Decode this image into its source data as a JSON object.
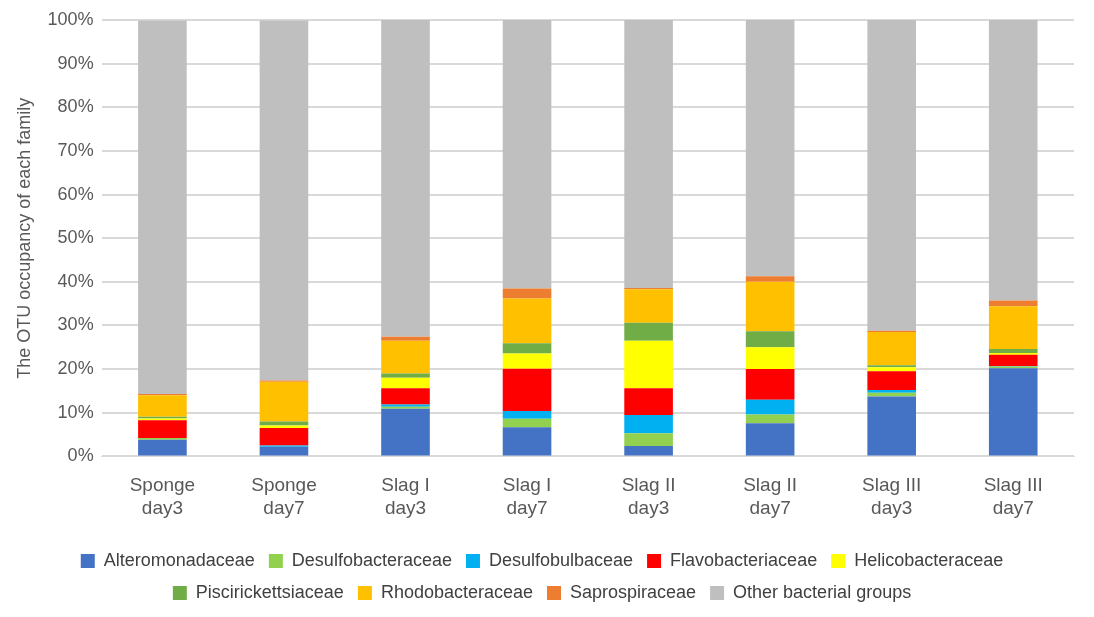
{
  "chart_data": {
    "type": "bar",
    "stacked": true,
    "ylabel": "The OTU occupancy of each family",
    "categories": [
      "Sponge day3",
      "Sponge day7",
      "Slag I day3",
      "Slag I day7",
      "Slag II day3",
      "Slag II day7",
      "Slag III day3",
      "Slag III day7"
    ],
    "series": [
      {
        "name": "Alteromonadaceae",
        "color": "#4472c4",
        "values": [
          3.8,
          2.2,
          10.9,
          6.7,
          2.4,
          7.6,
          13.7,
          20.2
        ]
      },
      {
        "name": "Desulfobacteraceae",
        "color": "#92d050",
        "values": [
          0.4,
          null,
          0.5,
          1.9,
          2.9,
          2.0,
          0.9,
          0.4
        ]
      },
      {
        "name": "Desulfobulbaceae",
        "color": "#00b0f0",
        "values": [
          null,
          0.3,
          0.5,
          1.8,
          4.2,
          3.4,
          0.6,
          0.1
        ]
      },
      {
        "name": "Flavobacteriaceae",
        "color": "#ff0000",
        "values": [
          4.1,
          4.0,
          3.7,
          9.7,
          6.1,
          7.0,
          4.3,
          2.6
        ]
      },
      {
        "name": "Helicobacteraceae",
        "color": "#ffff00",
        "values": [
          0.4,
          0.6,
          2.4,
          3.5,
          10.9,
          5.0,
          0.9,
          0.4
        ]
      },
      {
        "name": "Piscirickettsiaceae",
        "color": "#70ad47",
        "values": [
          0.4,
          0.9,
          1.0,
          2.3,
          4.1,
          3.7,
          0.5,
          0.9
        ]
      },
      {
        "name": "Rhodobacteraceae",
        "color": "#ffc000",
        "values": [
          4.9,
          9.1,
          7.5,
          10.3,
          7.7,
          11.3,
          7.6,
          9.8
        ]
      },
      {
        "name": "Saprospiraceae",
        "color": "#ed7d31",
        "values": [
          0.3,
          0.3,
          0.9,
          2.3,
          0.3,
          1.3,
          0.3,
          1.3
        ]
      },
      {
        "name": "Other bacterial groups",
        "color": "#bfbfbf",
        "values": [
          85.6,
          82.5,
          72.6,
          61.5,
          61.4,
          58.7,
          71.2,
          64.3
        ]
      }
    ],
    "ylim": [
      0,
      100
    ],
    "yticks": [
      {
        "value": 0,
        "label": "0%"
      },
      {
        "value": 10,
        "label": "10%"
      },
      {
        "value": 20,
        "label": "20%"
      },
      {
        "value": 30,
        "label": "30%"
      },
      {
        "value": 40,
        "label": "40%"
      },
      {
        "value": 50,
        "label": "50%"
      },
      {
        "value": 60,
        "label": "60%"
      },
      {
        "value": 70,
        "label": "70%"
      },
      {
        "value": 80,
        "label": "80%"
      },
      {
        "value": 90,
        "label": "90%"
      },
      {
        "value": 100,
        "label": "100%"
      }
    ],
    "grid": "y",
    "legend": "bottom"
  }
}
